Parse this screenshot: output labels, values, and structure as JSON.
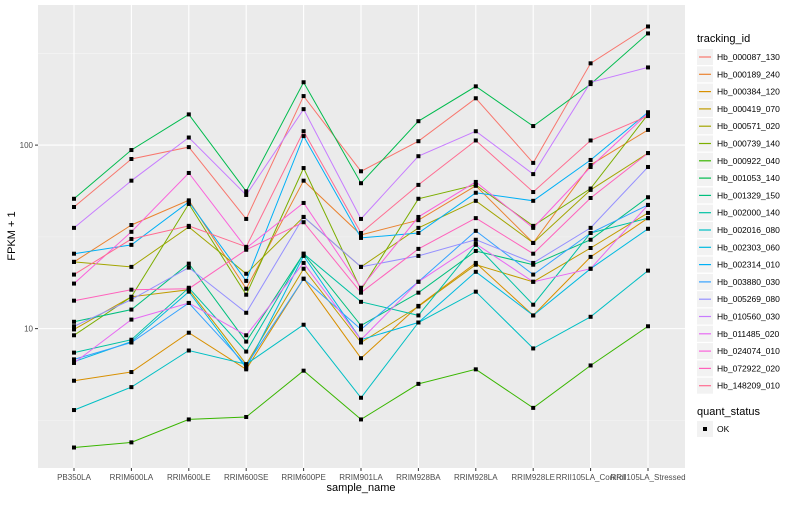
{
  "chart_data": {
    "type": "line",
    "xlabel": "sample_name",
    "ylabel": "FPKM + 1",
    "y_scale": "log10",
    "ylim": [
      1.74,
      580
    ],
    "y_ticks": [
      10,
      100
    ],
    "y_tick_labels": [
      "10",
      "100"
    ],
    "grid": true,
    "legend_position": "right",
    "categories": [
      "PB350LA",
      "RRIM600LA",
      "RRIM600LE",
      "RRIM600SE",
      "RRIM600PE",
      "RRIM901LA",
      "RRIM928BA",
      "RRIM928LA",
      "RRIM928LE",
      "RRII105LA_Control",
      "RRII105LA_Stressed"
    ],
    "color_legend_title": "tracking_id",
    "shape_legend_title": "quant_status",
    "shape_legend_items": [
      "OK"
    ],
    "series": [
      {
        "name": "Hb_000087_130",
        "color": "#F8766D",
        "values": [
          46,
          84,
          97.5,
          39.6,
          185,
          72,
          105,
          180,
          80,
          279,
          443
        ]
      },
      {
        "name": "Hb_000189_240",
        "color": "#EA8331",
        "values": [
          23.1,
          36.7,
          50,
          16.5,
          64,
          32.4,
          39,
          60,
          29.3,
          78,
          121
        ]
      },
      {
        "name": "Hb_000384_120",
        "color": "#D89000",
        "values": [
          5.2,
          5.8,
          9.5,
          6.0,
          18.7,
          6.9,
          13.3,
          22.8,
          11.8,
          24.6,
          40
        ]
      },
      {
        "name": "Hb_000419_070",
        "color": "#C09B00",
        "values": [
          9.9,
          14.9,
          16.3,
          6.4,
          21.2,
          8.4,
          13.2,
          22.3,
          18,
          27.5,
          42.7
        ]
      },
      {
        "name": "Hb_000571_020",
        "color": "#A3A500",
        "values": [
          23.1,
          21.7,
          35.8,
          19.9,
          40.6,
          21.7,
          35.4,
          49.7,
          29.3,
          57,
          90.5
        ]
      },
      {
        "name": "Hb_000739_140",
        "color": "#7CAE00",
        "values": [
          9.2,
          14.9,
          47.8,
          15.3,
          75,
          16.3,
          51,
          60.7,
          36.3,
          58,
          147
        ]
      },
      {
        "name": "Hb_000922_040",
        "color": "#39B600",
        "values": [
          2.25,
          2.4,
          3.2,
          3.3,
          5.9,
          3.2,
          5.0,
          6.0,
          3.7,
          6.3,
          10.3
        ]
      },
      {
        "name": "Hb_001053_140",
        "color": "#00BB4E",
        "values": [
          51,
          94,
          147,
          56,
          220,
          62,
          135,
          209,
          127,
          215,
          406
        ]
      },
      {
        "name": "Hb_001329_150",
        "color": "#00BF7D",
        "values": [
          10.9,
          12.7,
          22.6,
          8.5,
          25.6,
          10.4,
          15.7,
          26.5,
          22.3,
          30.5,
          52
        ]
      },
      {
        "name": "Hb_002000_140",
        "color": "#00C1A3",
        "values": [
          7.4,
          8.7,
          16.7,
          7.5,
          25.6,
          14.0,
          11.8,
          28.6,
          13.5,
          33.2,
          40
        ]
      },
      {
        "name": "Hb_002016_080",
        "color": "#00BFC4",
        "values": [
          3.6,
          4.8,
          7.6,
          6.4,
          10.5,
          4.2,
          10.8,
          15.9,
          7.8,
          11.6,
          20.7
        ]
      },
      {
        "name": "Hb_002303_060",
        "color": "#00BAE0",
        "values": [
          6.6,
          8.5,
          15.9,
          6.1,
          24.9,
          8.7,
          10.8,
          20.4,
          11.8,
          21.2,
          35
        ]
      },
      {
        "name": "Hb_002314_010",
        "color": "#00B0F6",
        "values": [
          25.6,
          28.6,
          49,
          18.2,
          112,
          31.2,
          33.2,
          55,
          49.7,
          83,
          151
        ]
      },
      {
        "name": "Hb_003880_030",
        "color": "#35A2FF",
        "values": [
          6.8,
          8.4,
          13.8,
          6.3,
          18.7,
          9.9,
          18,
          34.1,
          19.7,
          33.2,
          47.2
        ]
      },
      {
        "name": "Hb_005269_080",
        "color": "#9590FF",
        "values": [
          10.3,
          14.4,
          21.5,
          12.2,
          40.6,
          21.7,
          24.9,
          30.5,
          22.8,
          35.4,
          76
        ]
      },
      {
        "name": "Hb_010560_030",
        "color": "#C77CFF",
        "values": [
          35.4,
          64,
          110,
          53.5,
          157,
          39.6,
          87,
          119,
          69.5,
          220,
          265
        ]
      },
      {
        "name": "Hb_011485_020",
        "color": "#E76BF3",
        "values": [
          6.5,
          11.2,
          13.8,
          9.2,
          22.8,
          8.7,
          18,
          29,
          18,
          21.2,
          47.2
        ]
      },
      {
        "name": "Hb_024074_010",
        "color": "#FA62DB",
        "values": [
          17.6,
          33.7,
          70.5,
          27.5,
          48.4,
          16.7,
          40.6,
          63,
          35.4,
          76,
          149
        ]
      },
      {
        "name": "Hb_072922_020",
        "color": "#FF62BC",
        "values": [
          14.2,
          16.3,
          16.5,
          26.9,
          38,
          15.7,
          27.2,
          40,
          25.6,
          51.5,
          90.5
        ]
      },
      {
        "name": "Hb_148209_010",
        "color": "#FF6C91",
        "values": [
          19.7,
          30.8,
          36.3,
          27.9,
          119,
          33.2,
          60.7,
          106,
          55.5,
          106,
          144
        ]
      }
    ]
  }
}
